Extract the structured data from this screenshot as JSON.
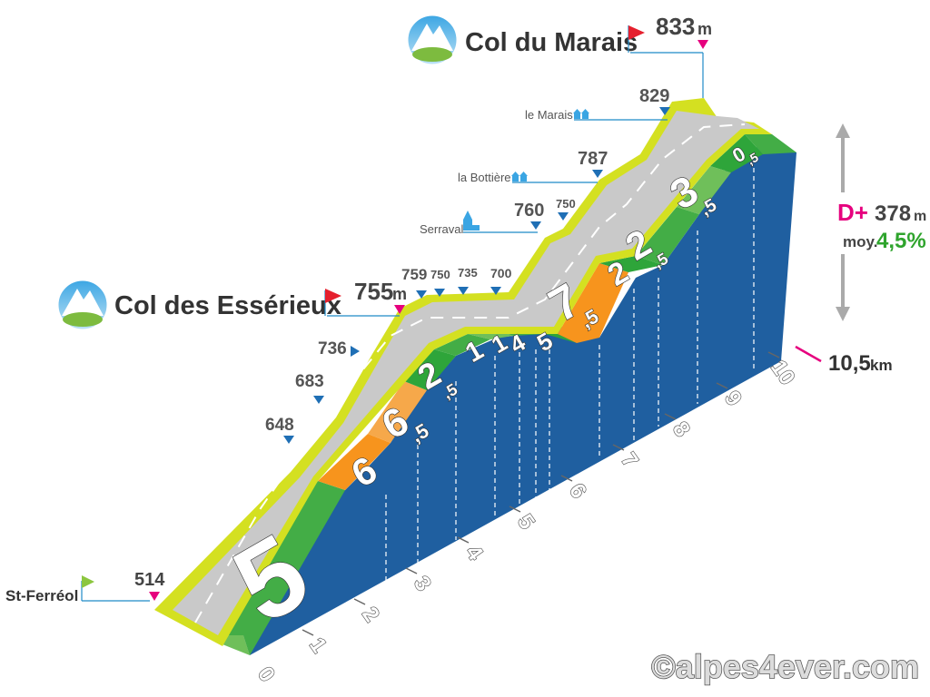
{
  "header": {
    "summit_name": "Col du Marais",
    "summit_alt": "833",
    "summit_unit": "m",
    "col2_name": "Col des Essérieux",
    "col2_alt": "755",
    "col2_unit": "m",
    "start_name": "St-Ferréol",
    "start_alt": "514"
  },
  "stats": {
    "dplus_label": "D+",
    "dplus_value": "378",
    "dplus_unit": "m",
    "avg_label": "moy.",
    "avg_value": "4,5%",
    "distance_value": "10,5",
    "distance_unit": "km"
  },
  "places": [
    {
      "name": "le Marais",
      "alt": "829"
    },
    {
      "name": "la Bottière",
      "alt": "787"
    },
    {
      "name": "Serraval",
      "alt": "760"
    }
  ],
  "minor_alts": [
    "750",
    "759",
    "750",
    "735",
    "700",
    "736",
    "683",
    "648"
  ],
  "copyright": "©alpes4ever.com",
  "colors": {
    "road": "#c9c9c9",
    "border_yellow": "#d4e021",
    "side_blue": "#1f5fa0",
    "green_dark": "#2ea53a",
    "green_mid": "#43ad46",
    "green_light": "#6fbf5a",
    "orange": "#f7941d",
    "orange_light": "#f6a84a",
    "magenta": "#e6007e",
    "red_flag": "#e5202e",
    "accent_green": "#2fa42d"
  },
  "chart_data": {
    "type": "area",
    "title": "Col du Marais",
    "xlabel": "km",
    "ylabel": "m",
    "x_ticks": [
      "0",
      "1",
      "2",
      "3",
      "4",
      "5",
      "6",
      "7",
      "8",
      "9",
      "10"
    ],
    "segments": [
      {
        "from_km": 0,
        "to_km": 3,
        "grade_label": "5"
      },
      {
        "from_km": 3,
        "to_km": 3.5,
        "grade_label": "6"
      },
      {
        "from_km": 3.5,
        "to_km": 4,
        "grade_label": "6,5"
      },
      {
        "from_km": 4,
        "to_km": 4.6,
        "grade_label": "2,5"
      },
      {
        "from_km": 4.6,
        "to_km": 5.0,
        "grade_label": "1"
      },
      {
        "from_km": 5.0,
        "to_km": 5.3,
        "grade_label": "1"
      },
      {
        "from_km": 5.3,
        "to_km": 5.6,
        "grade_label": "4"
      },
      {
        "from_km": 5.6,
        "to_km": 6.0,
        "grade_label": "5"
      },
      {
        "from_km": 6.0,
        "to_km": 6.5,
        "grade_label": "7,5"
      },
      {
        "from_km": 6.5,
        "to_km": 7.0,
        "grade_label": "2"
      },
      {
        "from_km": 7.0,
        "to_km": 8.0,
        "grade_label": "2,5"
      },
      {
        "from_km": 8.0,
        "to_km": 9.5,
        "grade_label": "3,5"
      },
      {
        "from_km": 9.5,
        "to_km": 10.5,
        "grade_label": "0,5"
      }
    ],
    "points": [
      {
        "km": 0,
        "alt": 514,
        "label": "St-Ferréol"
      },
      {
        "km": 2.5,
        "alt": 648
      },
      {
        "km": 3.1,
        "alt": 683
      },
      {
        "km": 3.6,
        "alt": 736
      },
      {
        "km": 4.5,
        "alt": 755,
        "label": "Col des Essérieux"
      },
      {
        "km": 4.6,
        "alt": 759
      },
      {
        "km": 4.8,
        "alt": 750
      },
      {
        "km": 5.0,
        "alt": 735
      },
      {
        "km": 5.4,
        "alt": 700
      },
      {
        "km": 6.0,
        "alt": 760,
        "label": "Serraval"
      },
      {
        "km": 6.2,
        "alt": 750
      },
      {
        "km": 7.5,
        "alt": 787,
        "label": "la Bottière"
      },
      {
        "km": 9.5,
        "alt": 829,
        "label": "le Marais"
      },
      {
        "km": 10.5,
        "alt": 833,
        "label": "Col du Marais"
      }
    ],
    "total_km": 10.5,
    "gain_m": 378,
    "avg_grade_pct": 4.5
  }
}
